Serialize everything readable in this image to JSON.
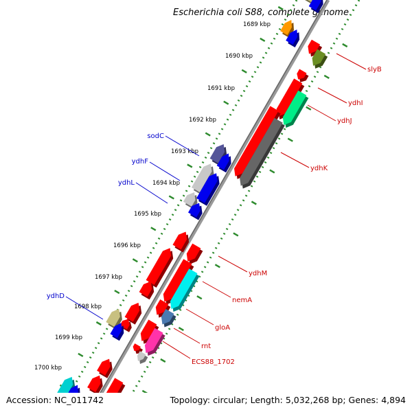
{
  "title": "Escherichia coli S88, complete genome",
  "footer": {
    "accession": "Accession: NC_011742",
    "summary": "Topology: circular; Length: 5,032,268 bp; Genes: 4,894"
  },
  "colors": {
    "backbone": "#888888",
    "tick_ring": "#2e8b2e",
    "label_left": "#0000cc",
    "label_right": "#cc0000"
  },
  "ticks": [
    "1689 kbp",
    "1690 kbp",
    "1691 kbp",
    "1692 kbp",
    "1693 kbp",
    "1694 kbp",
    "1695 kbp",
    "1696 kbp",
    "1697 kbp",
    "1698 kbp",
    "1699 kbp",
    "1700 kbp"
  ],
  "labels_left": [
    "sodC",
    "ydhF",
    "ydhL",
    "ydhD"
  ],
  "labels_right": [
    "slyB",
    "ydhI",
    "ydhJ",
    "ydhK",
    "ydhM",
    "nemA",
    "gloA",
    "rnt",
    "ECS88_1702"
  ]
}
